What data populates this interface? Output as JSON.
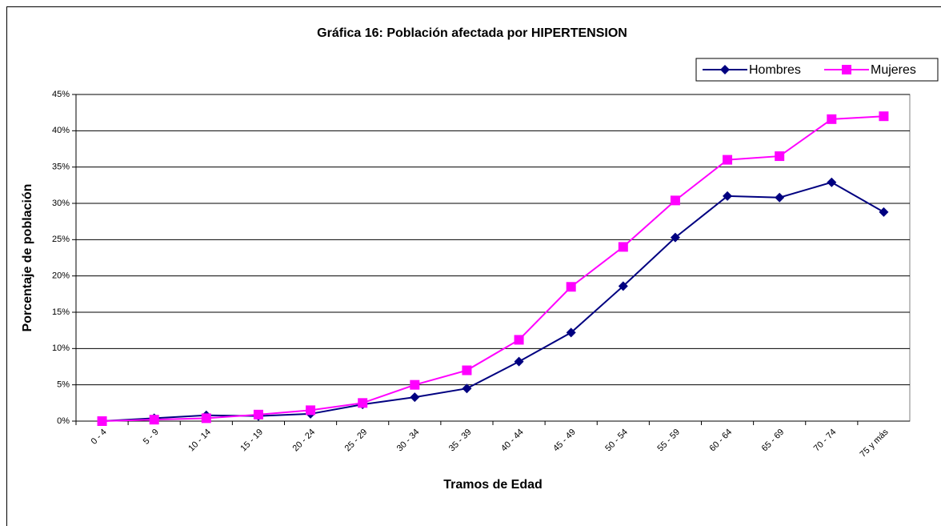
{
  "chart_data": {
    "type": "line",
    "title": "Gráfica 16: Población afectada por HIPERTENSION",
    "xlabel": "Tramos de Edad",
    "ylabel": "Porcentaje de población",
    "categories": [
      "0 - 4",
      "5 - 9",
      "10 - 14",
      "15 - 19",
      "20 - 24",
      "25 - 29",
      "30 - 34",
      "35 - 39",
      "40 - 44",
      "45 - 49",
      "50 - 54",
      "55 - 59",
      "60 - 64",
      "65 - 69",
      "70 - 74",
      "75 y más"
    ],
    "series": [
      {
        "name": "Hombres",
        "color": "#000080",
        "marker": "diamond",
        "values": [
          0,
          0.4,
          0.8,
          0.7,
          1.0,
          2.3,
          3.3,
          4.5,
          8.2,
          12.2,
          18.6,
          25.3,
          31.0,
          30.8,
          32.9,
          28.8
        ]
      },
      {
        "name": "Mujeres",
        "color": "#ff00ff",
        "marker": "square",
        "values": [
          0,
          0.2,
          0.4,
          0.9,
          1.5,
          2.5,
          5.0,
          7.0,
          11.2,
          18.5,
          24.0,
          30.4,
          36.0,
          36.5,
          41.6,
          42.0
        ]
      }
    ],
    "ylim": [
      0,
      45
    ],
    "yticks": [
      {
        "value": 0,
        "label": "0%"
      },
      {
        "value": 5,
        "label": "5%"
      },
      {
        "value": 10,
        "label": "10%"
      },
      {
        "value": 15,
        "label": "15%"
      },
      {
        "value": 20,
        "label": "20%"
      },
      {
        "value": 25,
        "label": "25%"
      },
      {
        "value": 30,
        "label": "30%"
      },
      {
        "value": 35,
        "label": "35%"
      },
      {
        "value": 40,
        "label": "40%"
      },
      {
        "value": 45,
        "label": "45%"
      }
    ],
    "grid": true,
    "legend": "top-right"
  }
}
